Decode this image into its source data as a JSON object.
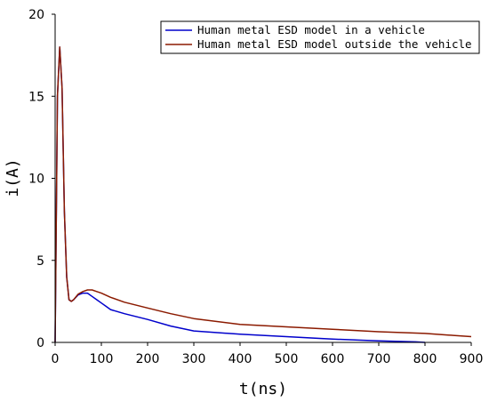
{
  "chart_data": {
    "type": "line",
    "title": "",
    "xlabel": "t(ns)",
    "ylabel": "i(A)",
    "xlim": [
      0,
      900
    ],
    "ylim": [
      0,
      20
    ],
    "xticks": [
      0,
      100,
      200,
      300,
      400,
      500,
      600,
      700,
      800,
      900
    ],
    "yticks": [
      0,
      5,
      10,
      15,
      20
    ],
    "grid": false,
    "legend": "top-right",
    "series": [
      {
        "name": "Human metal ESD model in a vehicle",
        "color": "#0000cc",
        "x": [
          0,
          5,
          10,
          15,
          20,
          25,
          30,
          35,
          40,
          50,
          60,
          70,
          80,
          90,
          100,
          110,
          120,
          150,
          200,
          250,
          300,
          400,
          500,
          600,
          700,
          780,
          800
        ],
        "y": [
          0,
          15,
          18,
          15.5,
          8,
          4,
          2.6,
          2.5,
          2.6,
          2.9,
          3.0,
          3.0,
          2.8,
          2.6,
          2.4,
          2.2,
          2.0,
          1.75,
          1.4,
          1.0,
          0.7,
          0.5,
          0.35,
          0.2,
          0.1,
          0.03,
          0
        ]
      },
      {
        "name": "Human metal ESD model outside the vehicle",
        "color": "#8b1a00",
        "x": [
          0,
          5,
          10,
          15,
          20,
          25,
          30,
          35,
          40,
          50,
          60,
          70,
          80,
          90,
          100,
          120,
          150,
          200,
          250,
          300,
          400,
          500,
          600,
          700,
          800,
          850,
          900
        ],
        "y": [
          0,
          15,
          18,
          15.5,
          8,
          4,
          2.6,
          2.5,
          2.6,
          2.95,
          3.1,
          3.2,
          3.2,
          3.1,
          3.0,
          2.75,
          2.45,
          2.1,
          1.75,
          1.45,
          1.1,
          0.95,
          0.8,
          0.65,
          0.55,
          0.45,
          0.35
        ]
      }
    ]
  }
}
